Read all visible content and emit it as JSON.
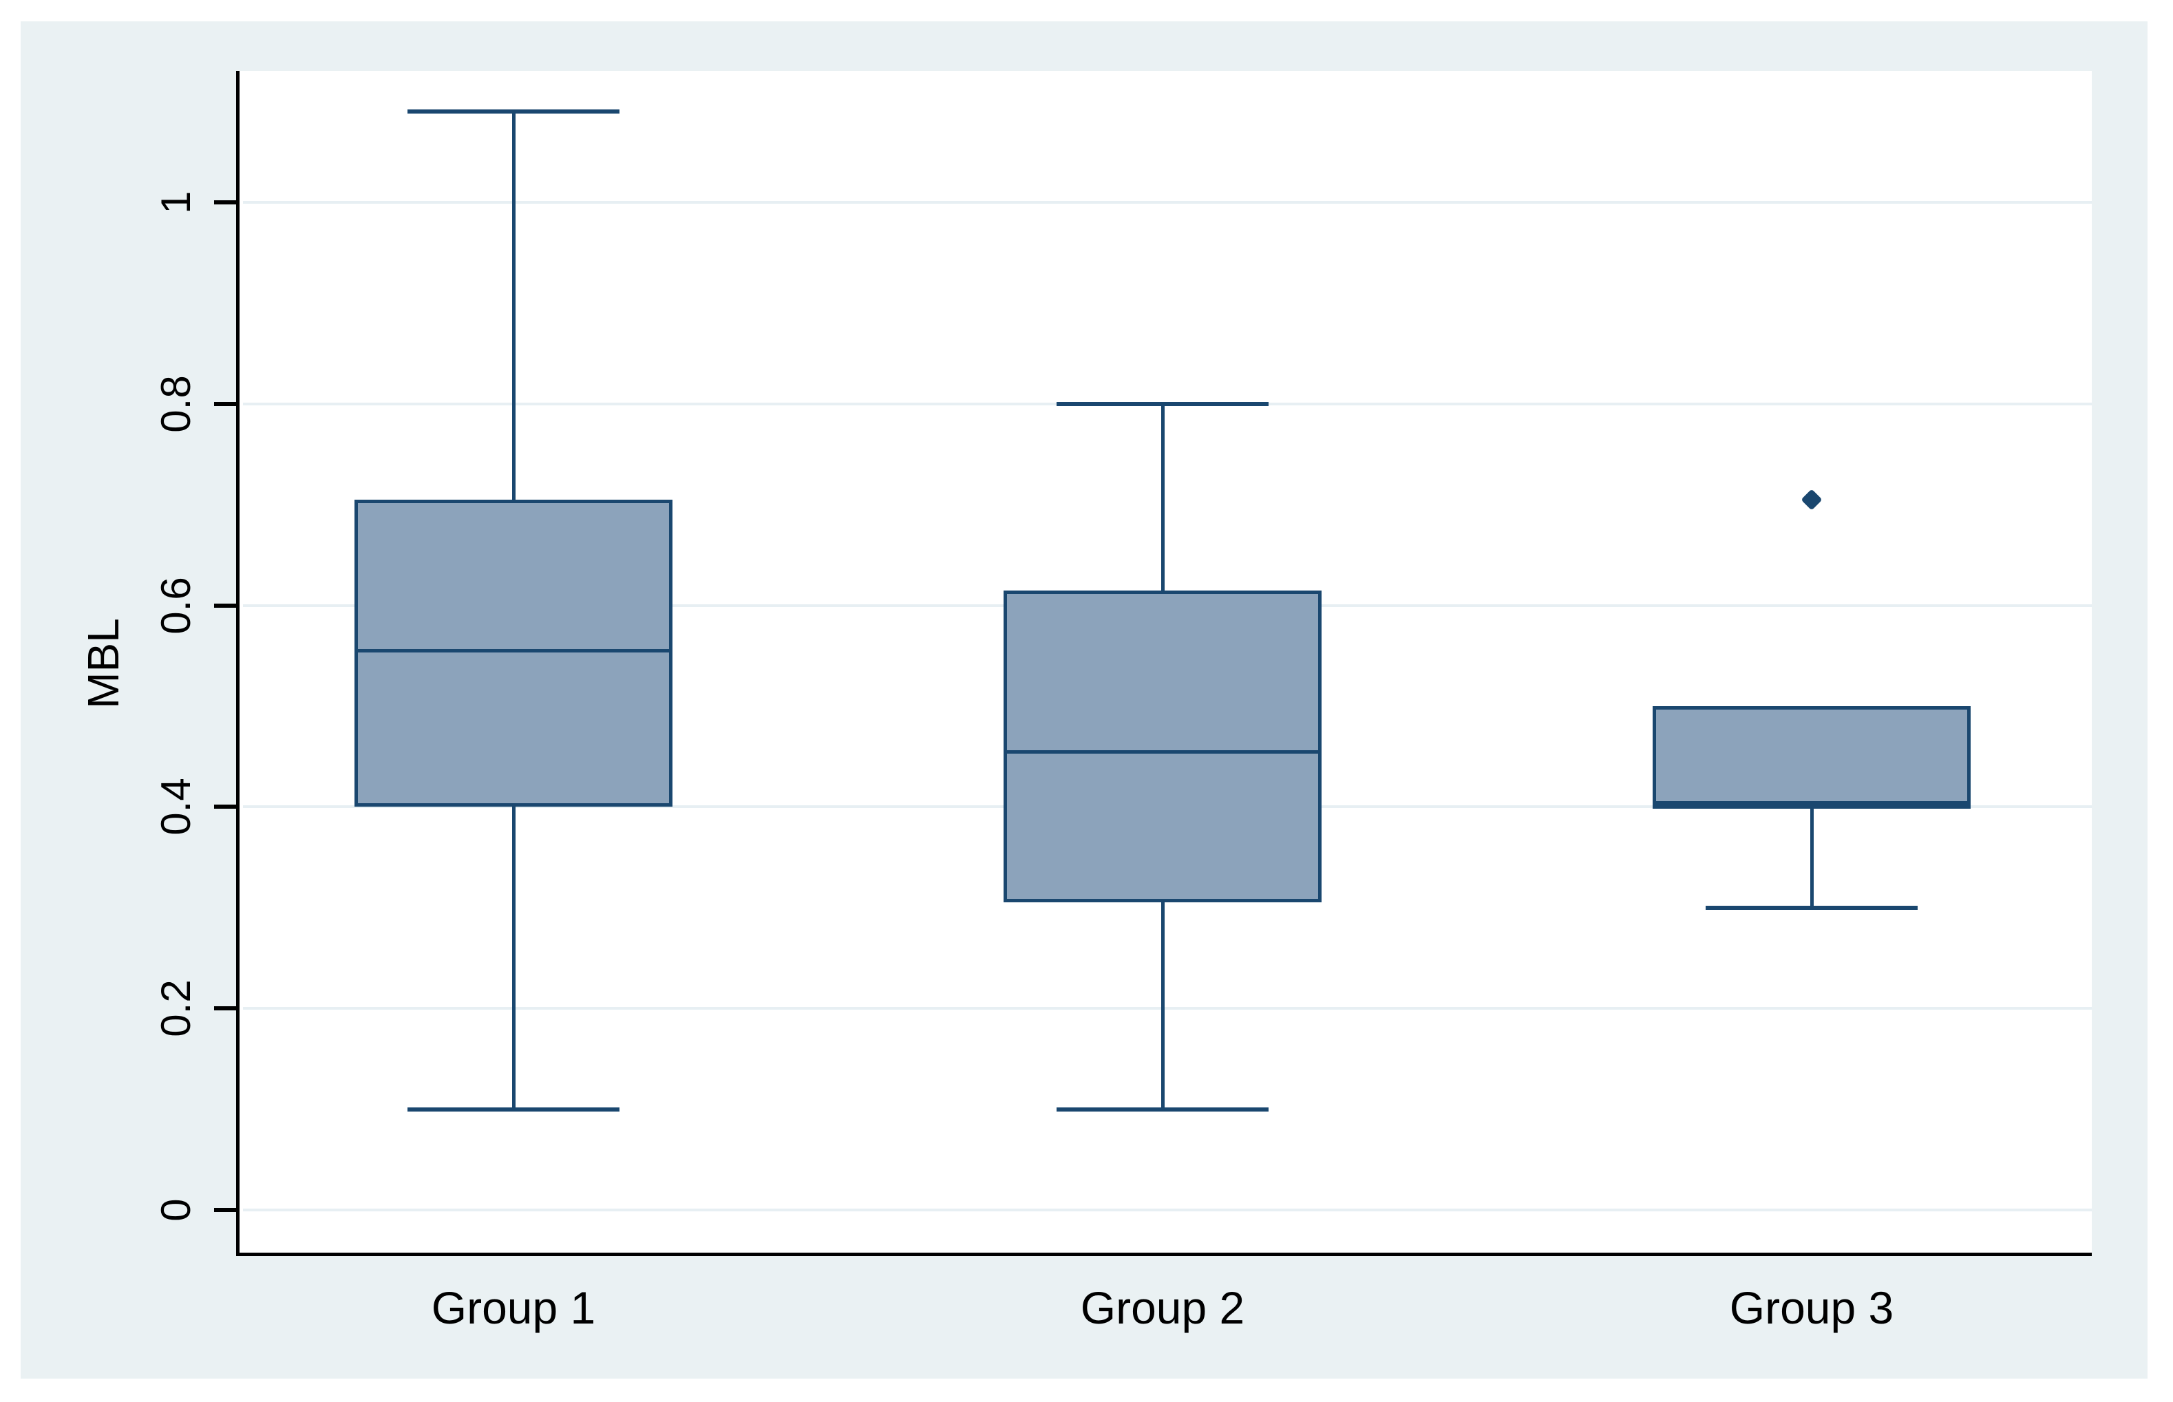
{
  "chart_data": {
    "type": "boxplot",
    "title": "",
    "ylabel": "MBL",
    "xlabel": "",
    "categories": [
      "Group 1",
      "Group 2",
      "Group 3"
    ],
    "yticks": [
      0,
      0.2,
      0.4,
      0.6,
      0.8,
      1
    ],
    "ytick_labels": [
      "0",
      "0.2",
      "0.4",
      "0.6",
      "0.8",
      "1"
    ],
    "ylim": [
      -0.05,
      1.13
    ],
    "grid": "horizontal",
    "series": [
      {
        "name": "Group 1",
        "min": 0.1,
        "q1": 0.4,
        "median": 0.555,
        "q3": 0.705,
        "max": 1.09,
        "outliers": []
      },
      {
        "name": "Group 2",
        "min": 0.1,
        "q1": 0.305,
        "median": 0.455,
        "q3": 0.615,
        "max": 0.8,
        "outliers": []
      },
      {
        "name": "Group 3",
        "min": 0.3,
        "q1": 0.4,
        "median": 0.4,
        "q3": 0.5,
        "max": 0.5,
        "outliers": [
          0.705
        ]
      }
    ]
  },
  "colors": {
    "canvas_background": "#eaf1f3",
    "plot_background": "#ffffff",
    "gridline": "#e7eff3",
    "axis": "#000000",
    "box_fill": "#8ca3bb",
    "box_stroke": "#1a476f",
    "whisker": "#1a476f",
    "outlier": "#1a476f",
    "text": "#000000"
  }
}
